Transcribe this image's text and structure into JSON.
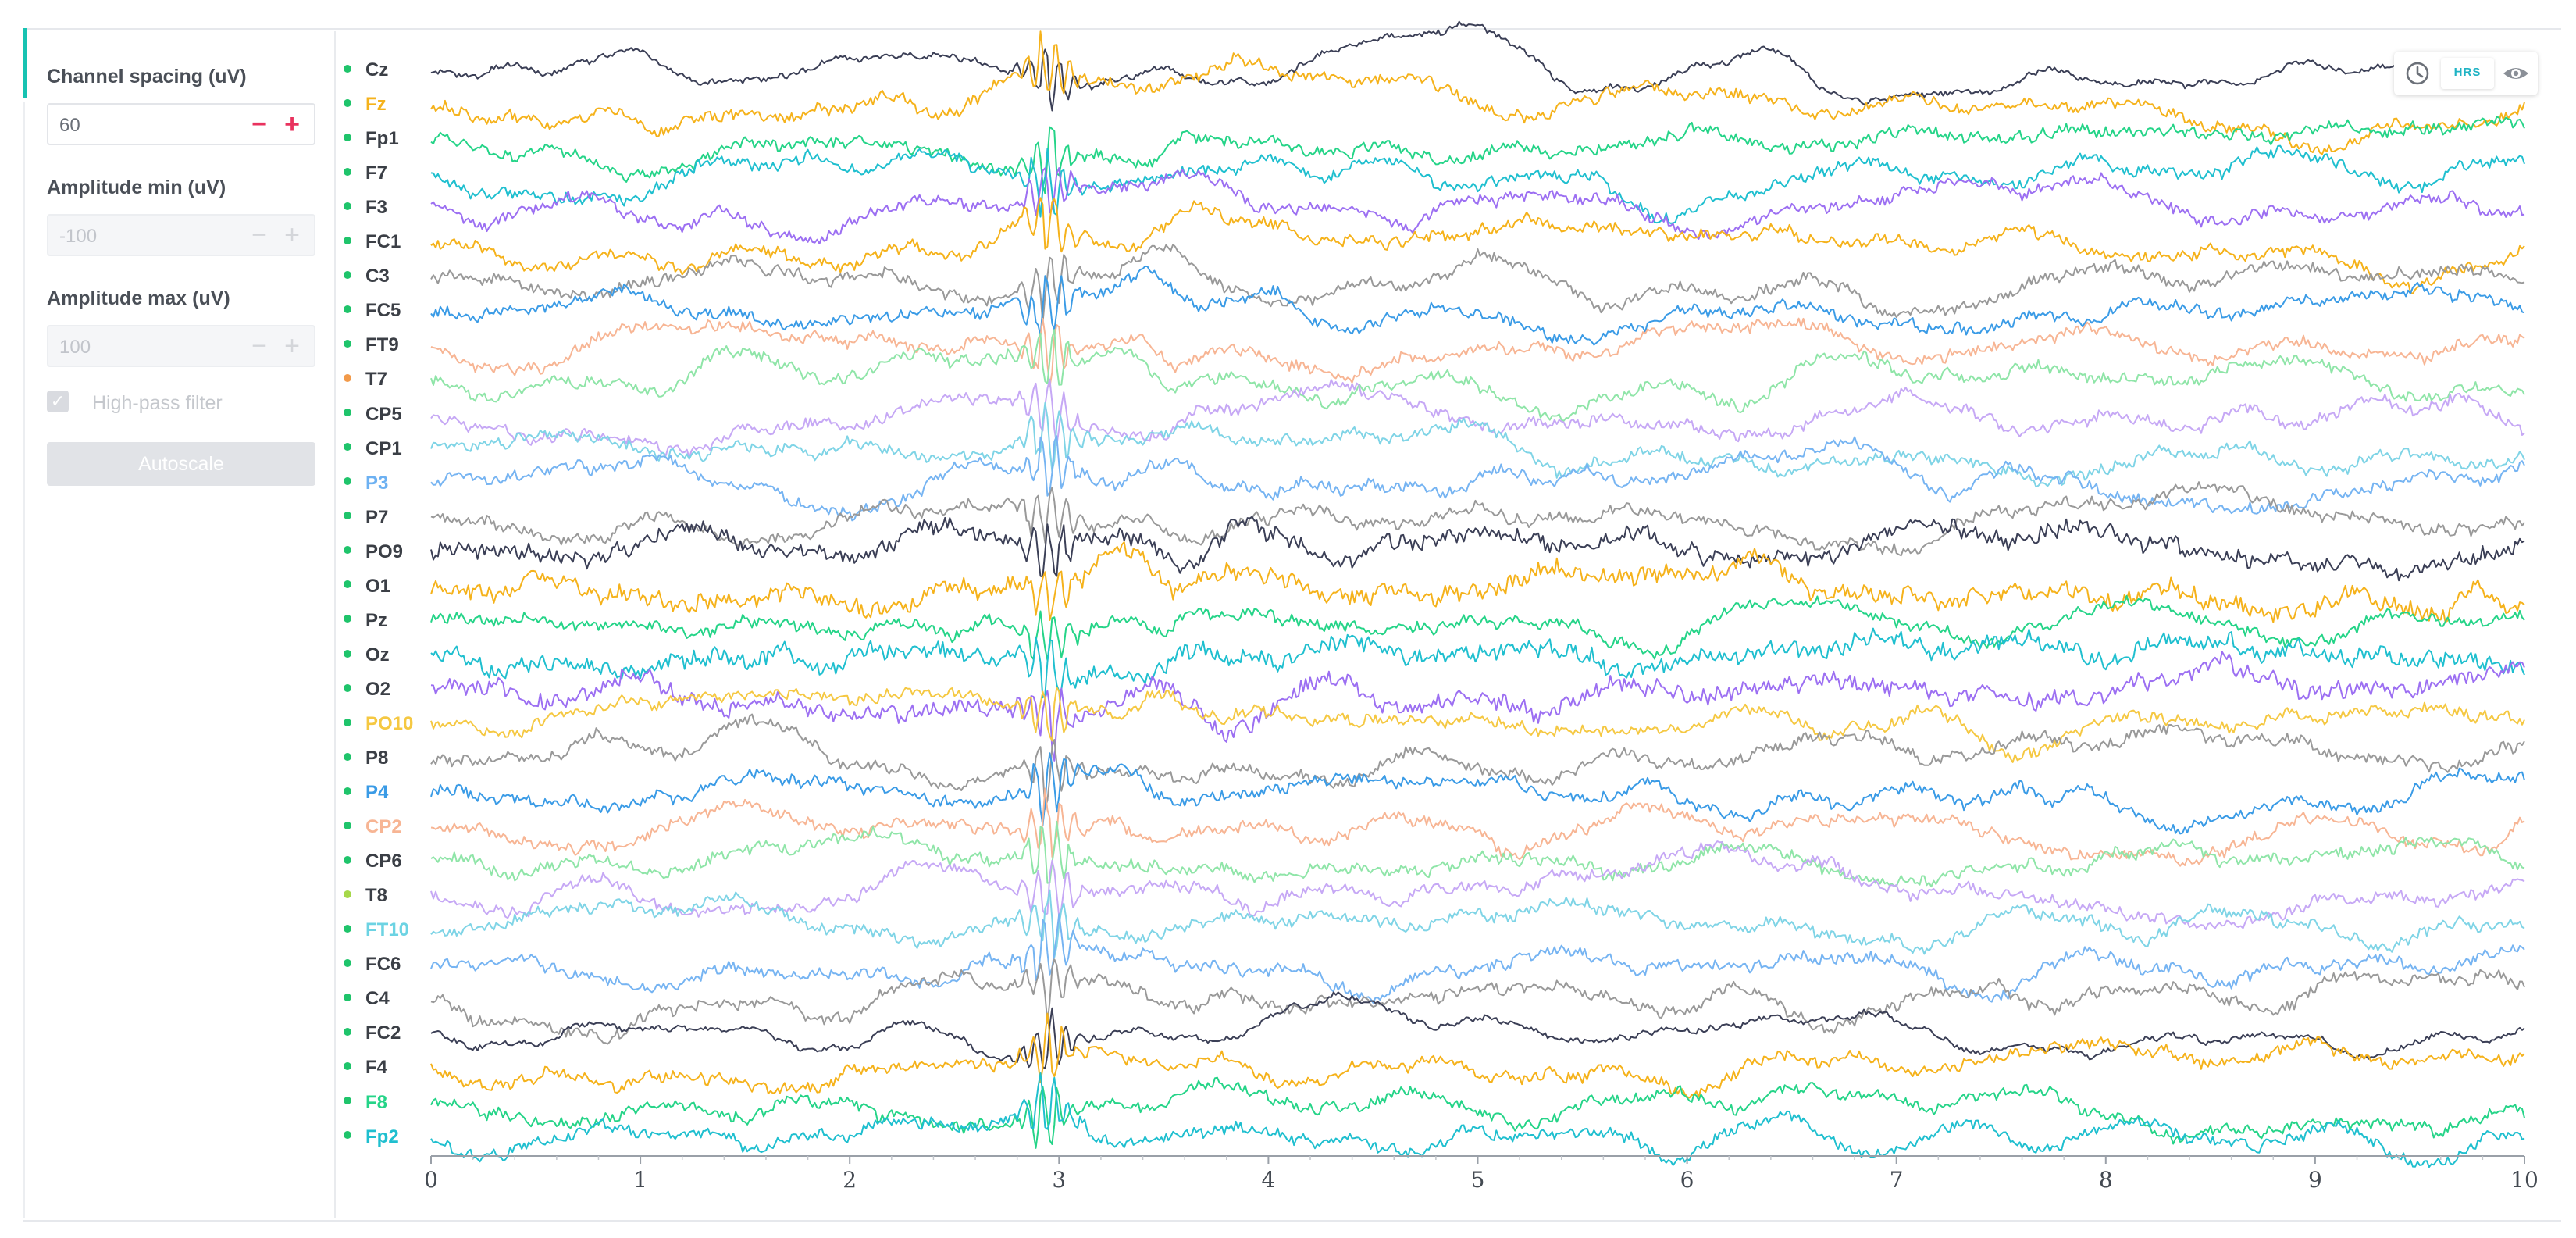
{
  "sidebar": {
    "channel_spacing": {
      "label": "Channel spacing (uV)",
      "value": "60",
      "minus": "−",
      "plus": "+"
    },
    "amplitude_min": {
      "label": "Amplitude min (uV)",
      "value": "-100",
      "minus": "−",
      "plus": "+"
    },
    "amplitude_max": {
      "label": "Amplitude max (uV)",
      "value": "100",
      "minus": "−",
      "plus": "+"
    },
    "high_pass": {
      "label": "High-pass filter",
      "checked": true
    },
    "autoscale_label": "Autoscale"
  },
  "toolbar": {
    "clock_icon": "clock-icon",
    "hrs_label": "HRS",
    "eye_icon": "eye-icon"
  },
  "channels": [
    {
      "name": "Cz",
      "color": "#3b3f56",
      "dot": "#1fc46b"
    },
    {
      "name": "Fz",
      "color": "#f5b21b",
      "dot": "#1fc46b"
    },
    {
      "name": "Fp1",
      "color": "#25d488",
      "dot": "#1fc46b"
    },
    {
      "name": "F7",
      "color": "#1fbfcf",
      "dot": "#1fc46b"
    },
    {
      "name": "F3",
      "color": "#9c6ff2",
      "dot": "#1fc46b"
    },
    {
      "name": "FC1",
      "color": "#f5b21b",
      "dot": "#1fc46b"
    },
    {
      "name": "C3",
      "color": "#999999",
      "dot": "#1fc46b"
    },
    {
      "name": "FC5",
      "color": "#3a9be6",
      "dot": "#1fc46b"
    },
    {
      "name": "FT9",
      "color": "#f7b594",
      "dot": "#1fc46b"
    },
    {
      "name": "T7",
      "color": "#8fe5a8",
      "dot": "#f29a4a"
    },
    {
      "name": "CP5",
      "color": "#c6a8f5",
      "dot": "#1fc46b"
    },
    {
      "name": "CP1",
      "color": "#7fd4e6",
      "dot": "#1fc46b"
    },
    {
      "name": "P3",
      "color": "#76b4f2",
      "dot": "#1fc46b"
    },
    {
      "name": "P7",
      "color": "#999999",
      "dot": "#1fc46b"
    },
    {
      "name": "PO9",
      "color": "#3b3f56",
      "dot": "#1fc46b"
    },
    {
      "name": "O1",
      "color": "#f5b21b",
      "dot": "#1fc46b"
    },
    {
      "name": "Pz",
      "color": "#25d488",
      "dot": "#1fc46b"
    },
    {
      "name": "Oz",
      "color": "#1fbfcf",
      "dot": "#1fc46b"
    },
    {
      "name": "O2",
      "color": "#9c6ff2",
      "dot": "#1fc46b"
    },
    {
      "name": "PO10",
      "color": "#f5c842",
      "dot": "#1fc46b"
    },
    {
      "name": "P8",
      "color": "#999999",
      "dot": "#1fc46b"
    },
    {
      "name": "P4",
      "color": "#3a9be6",
      "dot": "#1fc46b"
    },
    {
      "name": "CP2",
      "color": "#f7b594",
      "dot": "#1fc46b"
    },
    {
      "name": "CP6",
      "color": "#8fe5a8",
      "dot": "#1fc46b"
    },
    {
      "name": "T8",
      "color": "#c6a8f5",
      "dot": "#a6d84a"
    },
    {
      "name": "FT10",
      "color": "#7fd4e6",
      "dot": "#1fc46b"
    },
    {
      "name": "FC6",
      "color": "#76b4f2",
      "dot": "#1fc46b"
    },
    {
      "name": "C4",
      "color": "#999999",
      "dot": "#1fc46b"
    },
    {
      "name": "FC2",
      "color": "#3b3f56",
      "dot": "#1fc46b"
    },
    {
      "name": "F4",
      "color": "#f5b21b",
      "dot": "#1fc46b"
    },
    {
      "name": "F8",
      "color": "#25d488",
      "dot": "#1fc46b"
    },
    {
      "name": "Fp2",
      "color": "#1fbfcf",
      "dot": "#1fc46b"
    }
  ],
  "channel_label_colors": {
    "Cz": "#3b3f46",
    "Fz": "#f5b21b",
    "Fp1": "#3b3f46",
    "F7": "#3b3f46",
    "F3": "#3b3f46",
    "FC1": "#3b3f46",
    "C3": "#3b3f46",
    "FC5": "#3b3f46",
    "FT9": "#3b3f46",
    "T7": "#3b3f46",
    "CP5": "#3b3f46",
    "CP1": "#3b3f46",
    "P3": "#6db1f2",
    "P7": "#3b3f46",
    "PO9": "#3b3f46",
    "O1": "#3b3f46",
    "Pz": "#3b3f46",
    "Oz": "#3b3f46",
    "O2": "#3b3f46",
    "PO10": "#f5c842",
    "P8": "#3b3f46",
    "P4": "#3a9be6",
    "CP2": "#f7b594",
    "CP6": "#3b3f46",
    "T8": "#3b3f46",
    "FT10": "#6cd3e3",
    "FC6": "#3b3f46",
    "C4": "#3b3f46",
    "FC2": "#3b3f46",
    "F4": "#3b3f46",
    "F8": "#25d488",
    "Fp2": "#1fbfcf"
  },
  "chart_data": {
    "type": "line",
    "x_range": [
      0,
      10
    ],
    "x_ticks": [
      "0",
      "1",
      "2",
      "3",
      "4",
      "5",
      "6",
      "7",
      "8",
      "9",
      "10"
    ],
    "grid": false,
    "series_are_channels": true,
    "event": {
      "approx_x_seconds": 2.95,
      "description_visible": false
    }
  }
}
